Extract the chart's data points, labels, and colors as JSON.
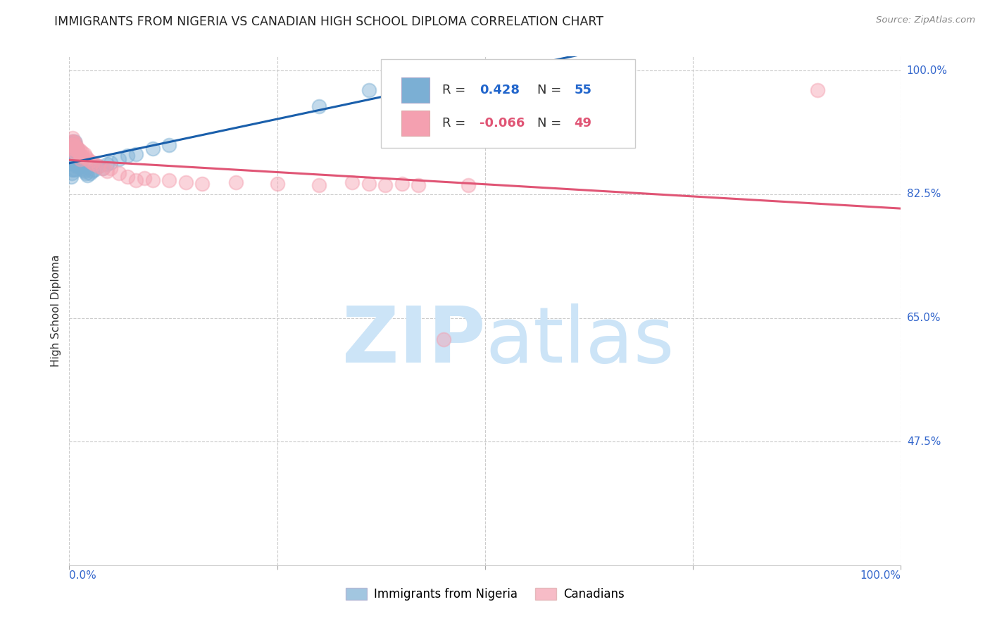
{
  "title": "IMMIGRANTS FROM NIGERIA VS CANADIAN HIGH SCHOOL DIPLOMA CORRELATION CHART",
  "source": "Source: ZipAtlas.com",
  "ylabel": "High School Diploma",
  "ytick_labels": [
    "100.0%",
    "82.5%",
    "65.0%",
    "47.5%"
  ],
  "ytick_values": [
    1.0,
    0.825,
    0.65,
    0.475
  ],
  "legend_label_blue": "Immigrants from Nigeria",
  "legend_label_pink": "Canadians",
  "blue_color": "#7BAFD4",
  "pink_color": "#F4A0B0",
  "trendline_blue": "#1A5FAB",
  "trendline_pink": "#E05575",
  "blue_x": [
    0.002,
    0.002,
    0.003,
    0.003,
    0.003,
    0.004,
    0.004,
    0.004,
    0.004,
    0.005,
    0.005,
    0.005,
    0.005,
    0.006,
    0.006,
    0.006,
    0.006,
    0.007,
    0.007,
    0.007,
    0.007,
    0.008,
    0.008,
    0.008,
    0.009,
    0.009,
    0.009,
    0.01,
    0.01,
    0.011,
    0.011,
    0.012,
    0.012,
    0.013,
    0.014,
    0.015,
    0.016,
    0.017,
    0.018,
    0.02,
    0.022,
    0.025,
    0.028,
    0.03,
    0.035,
    0.04,
    0.045,
    0.05,
    0.06,
    0.07,
    0.08,
    0.1,
    0.12,
    0.3,
    0.36
  ],
  "blue_y": [
    0.87,
    0.85,
    0.875,
    0.86,
    0.855,
    0.9,
    0.89,
    0.88,
    0.87,
    0.895,
    0.885,
    0.875,
    0.86,
    0.9,
    0.89,
    0.88,
    0.87,
    0.895,
    0.885,
    0.875,
    0.86,
    0.892,
    0.882,
    0.87,
    0.89,
    0.878,
    0.865,
    0.888,
    0.875,
    0.88,
    0.868,
    0.875,
    0.865,
    0.87,
    0.868,
    0.865,
    0.862,
    0.86,
    0.858,
    0.855,
    0.852,
    0.855,
    0.858,
    0.86,
    0.865,
    0.862,
    0.868,
    0.87,
    0.875,
    0.88,
    0.882,
    0.89,
    0.895,
    0.95,
    0.972
  ],
  "pink_x": [
    0.002,
    0.003,
    0.004,
    0.004,
    0.005,
    0.005,
    0.006,
    0.006,
    0.007,
    0.007,
    0.008,
    0.008,
    0.009,
    0.01,
    0.011,
    0.012,
    0.013,
    0.014,
    0.015,
    0.016,
    0.018,
    0.02,
    0.022,
    0.025,
    0.028,
    0.03,
    0.035,
    0.04,
    0.045,
    0.05,
    0.06,
    0.07,
    0.08,
    0.09,
    0.1,
    0.12,
    0.14,
    0.16,
    0.2,
    0.25,
    0.3,
    0.34,
    0.36,
    0.38,
    0.4,
    0.42,
    0.45,
    0.48,
    0.9
  ],
  "pink_y": [
    0.895,
    0.9,
    0.905,
    0.895,
    0.9,
    0.89,
    0.895,
    0.885,
    0.898,
    0.888,
    0.892,
    0.882,
    0.888,
    0.89,
    0.885,
    0.888,
    0.875,
    0.88,
    0.885,
    0.878,
    0.882,
    0.878,
    0.875,
    0.872,
    0.87,
    0.868,
    0.865,
    0.862,
    0.858,
    0.862,
    0.855,
    0.85,
    0.845,
    0.848,
    0.845,
    0.845,
    0.842,
    0.84,
    0.842,
    0.84,
    0.838,
    0.842,
    0.84,
    0.838,
    0.84,
    0.838,
    0.62,
    0.838,
    0.972
  ],
  "xlim": [
    0.0,
    1.0
  ],
  "ylim": [
    0.3,
    1.02
  ],
  "r_blue": "0.428",
  "n_blue": "55",
  "r_pink": "-0.066",
  "n_pink": "49"
}
